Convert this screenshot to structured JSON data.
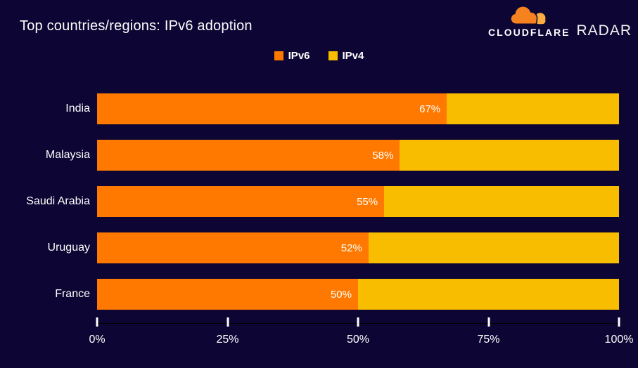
{
  "title": "Top countries/regions: IPv6 adoption",
  "brand": {
    "wordmark": "CLOUDFLARE",
    "product": "RADAR",
    "cloud_color": "#f6821f",
    "cloud_accent_color": "#fbad41"
  },
  "legend": {
    "items": [
      {
        "label": "IPv6",
        "color": "#ff7900"
      },
      {
        "label": "IPv4",
        "color": "#f9bd00"
      }
    ]
  },
  "colors": {
    "background": "#0d0634",
    "ipv6": "#ff7900",
    "ipv4": "#f9bd00",
    "axis_line": "#000000",
    "tick": "#ffffff",
    "text": "#ffffff"
  },
  "chart_data": {
    "type": "bar",
    "orientation": "horizontal",
    "stacked": true,
    "title": "Top countries/regions: IPv6 adoption",
    "categories": [
      "India",
      "Malaysia",
      "Saudi Arabia",
      "Uruguay",
      "France"
    ],
    "series": [
      {
        "name": "IPv6",
        "color": "#ff7900",
        "values": [
          67,
          58,
          55,
          52,
          50
        ]
      },
      {
        "name": "IPv4",
        "color": "#f9bd00",
        "values": [
          33,
          42,
          45,
          48,
          50
        ]
      }
    ],
    "bar_value_labels": [
      "67%",
      "58%",
      "55%",
      "52%",
      "50%"
    ],
    "xlim": [
      0,
      100
    ],
    "x_tick_values": [
      0,
      25,
      50,
      75,
      100
    ],
    "x_tick_labels": [
      "0%",
      "25%",
      "50%",
      "75%",
      "100%"
    ],
    "legend_position": "top-center",
    "grid": false
  },
  "layout_numbers": {
    "first_row_top": 133,
    "row_pitch": 66
  }
}
